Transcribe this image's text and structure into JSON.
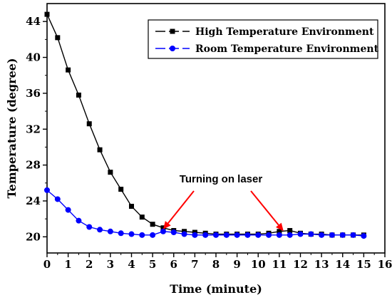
{
  "chart_data": {
    "type": "line",
    "xlabel": "Time (minute)",
    "ylabel": "Temperature (degree)",
    "xlim": [
      0,
      16
    ],
    "ylim": [
      18.2,
      46
    ],
    "x_ticks": [
      0,
      1,
      2,
      3,
      4,
      5,
      6,
      7,
      8,
      9,
      10,
      11,
      12,
      13,
      14,
      15,
      16
    ],
    "y_ticks": [
      20,
      24,
      28,
      32,
      36,
      40,
      44
    ],
    "grid": false,
    "legend_position": "top-right",
    "series": [
      {
        "name": "High Temperature Environment",
        "color": "#000000",
        "marker": "square",
        "x": [
          0,
          0.5,
          1,
          1.5,
          2,
          2.5,
          3,
          3.5,
          4,
          4.5,
          5,
          5.5,
          6,
          6.5,
          7,
          7.5,
          8,
          8.5,
          9,
          9.5,
          10,
          10.5,
          11,
          11.5,
          12,
          12.5,
          13,
          13.5,
          14,
          14.5,
          15
        ],
        "y": [
          44.8,
          42.2,
          38.6,
          35.8,
          32.6,
          29.7,
          27.2,
          25.3,
          23.4,
          22.2,
          21.4,
          21.0,
          20.7,
          20.6,
          20.5,
          20.4,
          20.3,
          20.3,
          20.3,
          20.3,
          20.3,
          20.4,
          20.6,
          20.7,
          20.4,
          20.3,
          20.3,
          20.2,
          20.2,
          20.2,
          20.2
        ]
      },
      {
        "name": "Room Temperature Environment",
        "color": "#0000ff",
        "marker": "circle",
        "x": [
          0,
          0.5,
          1,
          1.5,
          2,
          2.5,
          3,
          3.5,
          4,
          4.5,
          5,
          5.5,
          6,
          6.5,
          7,
          7.5,
          8,
          8.5,
          9,
          9.5,
          10,
          10.5,
          11,
          11.5,
          12,
          12.5,
          13,
          13.5,
          14,
          14.5,
          15
        ],
        "y": [
          25.2,
          24.2,
          23.0,
          21.8,
          21.1,
          20.8,
          20.6,
          20.4,
          20.3,
          20.2,
          20.2,
          20.6,
          20.5,
          20.3,
          20.2,
          20.2,
          20.2,
          20.2,
          20.2,
          20.2,
          20.2,
          20.2,
          20.2,
          20.2,
          20.3,
          20.3,
          20.2,
          20.2,
          20.2,
          20.2,
          20.1
        ]
      }
    ],
    "annotations": [
      {
        "text": "Turning on laser",
        "arrow_targets": [
          {
            "x": 5.5,
            "y": 20.6
          },
          {
            "x": 11.2,
            "y": 20.4
          }
        ],
        "arrow_color": "#ff0000"
      }
    ]
  }
}
